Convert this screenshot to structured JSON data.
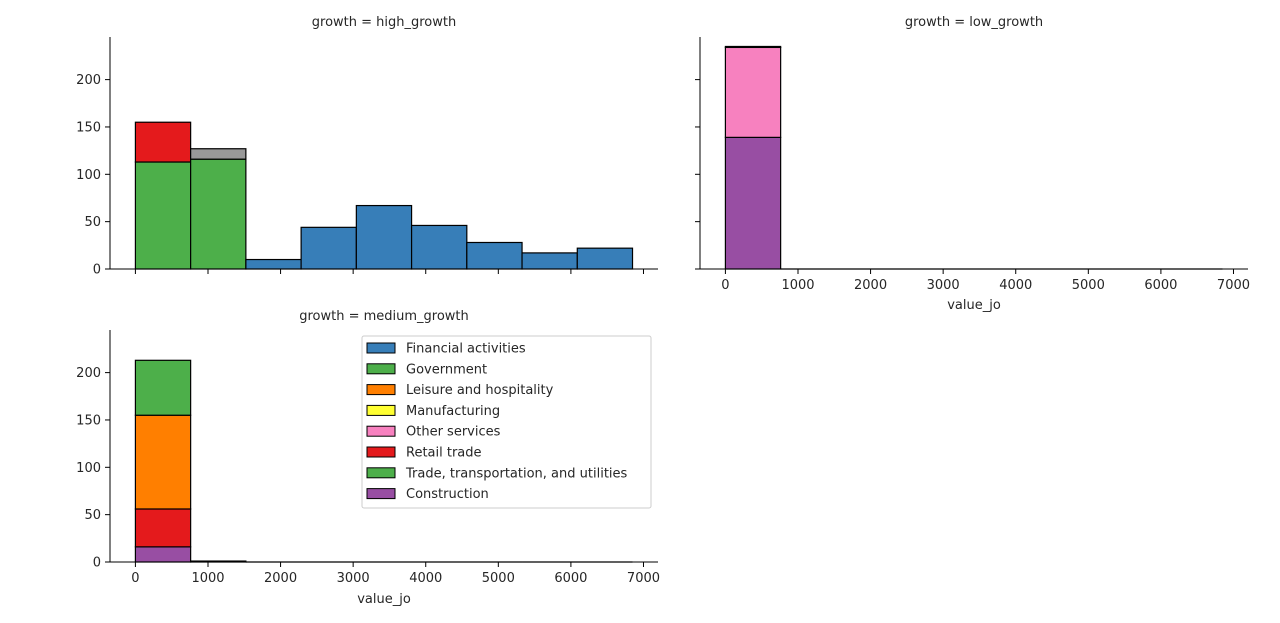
{
  "chart_data": {
    "type": "bar",
    "stacked": true,
    "bin_edges": [
      0,
      761,
      1522,
      2283,
      3044,
      3805,
      4566,
      5327,
      6088,
      6849
    ],
    "xlim": [
      -350,
      7200
    ],
    "ylim": [
      0,
      245
    ],
    "x_ticks": [
      "0",
      "1000",
      "2000",
      "3000",
      "4000",
      "5000",
      "6000",
      "7000"
    ],
    "y_ticks": [
      "0",
      "50",
      "100",
      "150",
      "200"
    ],
    "xlabel": "value_jo",
    "categories": [
      {
        "name": "Financial activities",
        "color": "#377eb8"
      },
      {
        "name": "Government",
        "color": "#4daf4a"
      },
      {
        "name": "Leisure and hospitality",
        "color": "#ff7f00"
      },
      {
        "name": "Manufacturing",
        "color": "#ffff33"
      },
      {
        "name": "Other services",
        "color": "#f781bf"
      },
      {
        "name": "Retail trade",
        "color": "#e41a1c"
      },
      {
        "name": "Trade, transportation, and utilities",
        "color": "#4daf4a"
      },
      {
        "name": "Construction",
        "color": "#984ea3"
      }
    ],
    "unlabeled_series_color": "#999999",
    "panels": [
      {
        "title": "growth = high_growth",
        "bins": [
          [
            {
              "cat": 1,
              "value": 113
            },
            {
              "cat": 5,
              "value": 42
            }
          ],
          [
            {
              "cat": 1,
              "value": 116
            },
            {
              "cat": -1,
              "value": 11
            }
          ],
          [
            {
              "cat": 0,
              "value": 10
            }
          ],
          [
            {
              "cat": 0,
              "value": 44
            }
          ],
          [
            {
              "cat": 0,
              "value": 67
            }
          ],
          [
            {
              "cat": 0,
              "value": 46
            }
          ],
          [
            {
              "cat": 0,
              "value": 28
            }
          ],
          [
            {
              "cat": 0,
              "value": 17
            }
          ],
          [
            {
              "cat": 0,
              "value": 22
            }
          ]
        ]
      },
      {
        "title": "growth = low_growth",
        "bins": [
          [
            {
              "cat": 7,
              "value": 139
            },
            {
              "cat": 4,
              "value": 95
            },
            {
              "cat": 3,
              "value": 1
            }
          ],
          [],
          [],
          [],
          [],
          [],
          [],
          [],
          []
        ]
      },
      {
        "title": "growth = medium_growth",
        "bins": [
          [
            {
              "cat": 7,
              "value": 16
            },
            {
              "cat": 5,
              "value": 40
            },
            {
              "cat": 2,
              "value": 99
            },
            {
              "cat": 6,
              "value": 58
            }
          ],
          [
            {
              "cat": 5,
              "value": 1
            }
          ],
          [],
          [],
          [],
          [],
          [],
          [],
          []
        ]
      }
    ]
  }
}
